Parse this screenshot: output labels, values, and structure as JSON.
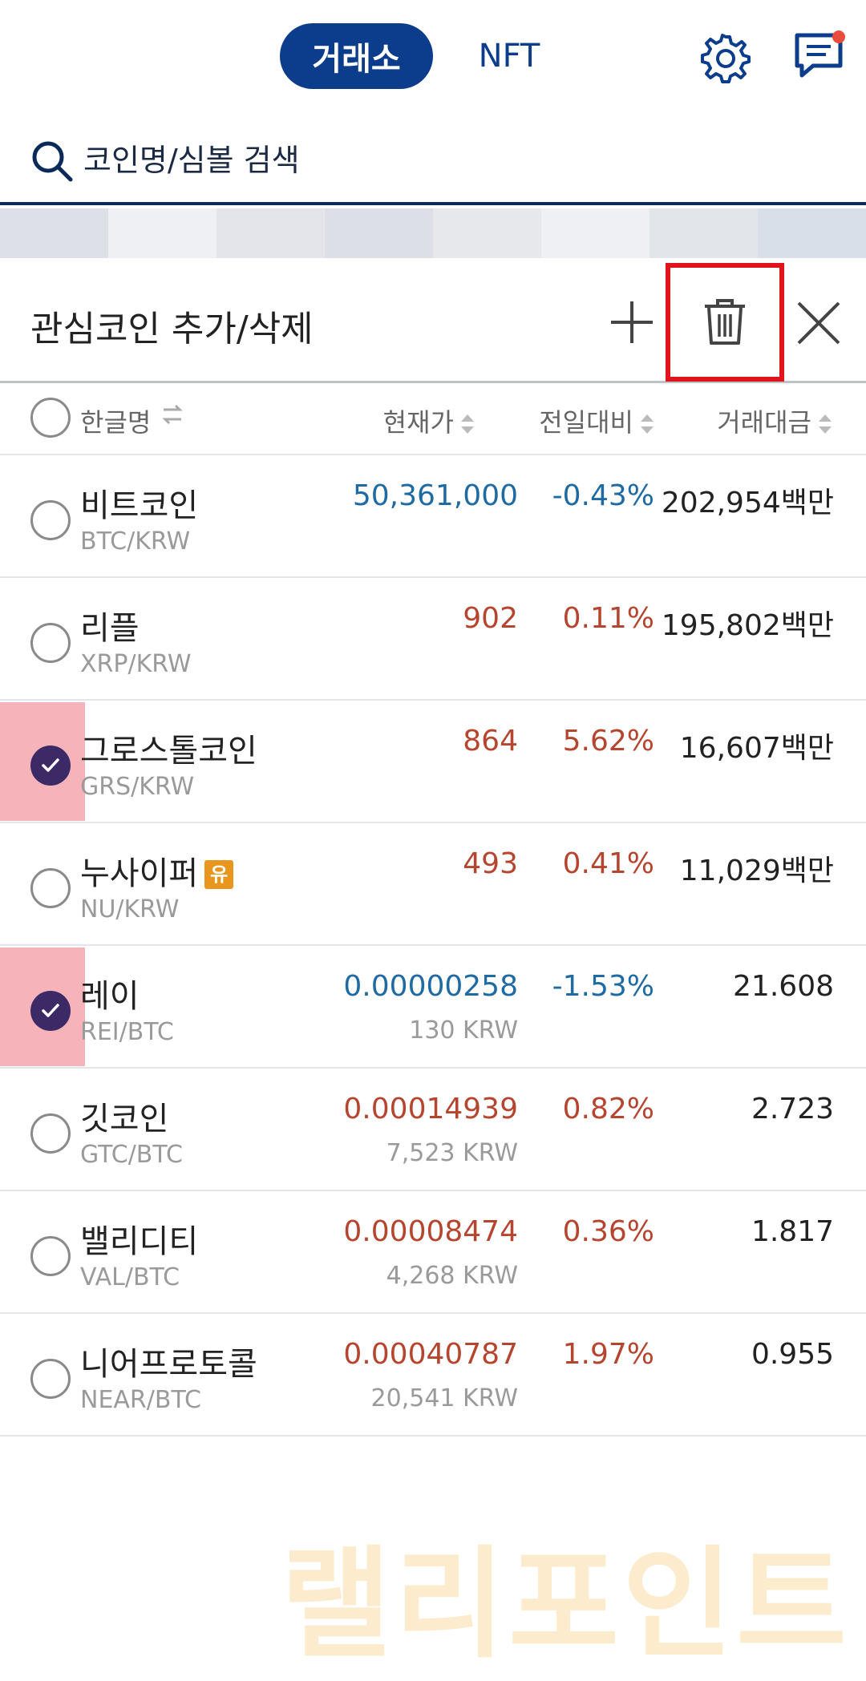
{
  "topbar": {
    "tab_exchange": "거래소",
    "tab_nft": "NFT",
    "settings_icon": "gear-icon",
    "messages_icon": "chat-icon",
    "notification_color": "#e74c3c"
  },
  "search": {
    "placeholder": "코인명/심볼 검색"
  },
  "panel": {
    "title": "관심코인 추가/삭제",
    "add_icon": "plus-icon",
    "delete_icon": "trash-icon",
    "close_icon": "close-icon"
  },
  "columns": {
    "name": "한글명",
    "price": "현재가",
    "change": "전일대비",
    "volume": "거래대금"
  },
  "rows": [
    {
      "name": "비트코인",
      "symbol": "BTC/KRW",
      "price": "50,361,000",
      "krw": "",
      "change": "-0.43%",
      "volume": "202,954백만",
      "checked": false,
      "trend": "down"
    },
    {
      "name": "리플",
      "symbol": "XRP/KRW",
      "price": "902",
      "krw": "",
      "change": "0.11%",
      "volume": "195,802백만",
      "checked": false,
      "trend": "up"
    },
    {
      "name": "그로스톨코인",
      "symbol": "GRS/KRW",
      "price": "864",
      "krw": "",
      "change": "5.62%",
      "volume": "16,607백만",
      "checked": true,
      "trend": "up"
    },
    {
      "name": "누사이퍼",
      "symbol": "NU/KRW",
      "price": "493",
      "krw": "",
      "change": "0.41%",
      "volume": "11,029백만",
      "checked": false,
      "trend": "up",
      "badge": "유"
    },
    {
      "name": "레이",
      "symbol": "REI/BTC",
      "price": "0.00000258",
      "krw": "130 KRW",
      "change": "-1.53%",
      "volume": "21.608",
      "checked": true,
      "trend": "down"
    },
    {
      "name": "깃코인",
      "symbol": "GTC/BTC",
      "price": "0.00014939",
      "krw": "7,523 KRW",
      "change": "0.82%",
      "volume": "2.723",
      "checked": false,
      "trend": "up"
    },
    {
      "name": "밸리디티",
      "symbol": "VAL/BTC",
      "price": "0.00008474",
      "krw": "4,268 KRW",
      "change": "0.36%",
      "volume": "1.817",
      "checked": false,
      "trend": "up"
    },
    {
      "name": "니어프로토콜",
      "symbol": "NEAR/BTC",
      "price": "0.00040787",
      "krw": "20,541 KRW",
      "change": "1.97%",
      "volume": "0.955",
      "checked": false,
      "trend": "up"
    }
  ],
  "watermark": "랠리포인트",
  "colors": {
    "brand": "#0b3d8c",
    "up": "#b5452e",
    "down": "#1e6aa2",
    "highlight_box": "#e0151c",
    "selected_bg": "#f7b3ba",
    "checked": "#3b2a66"
  }
}
